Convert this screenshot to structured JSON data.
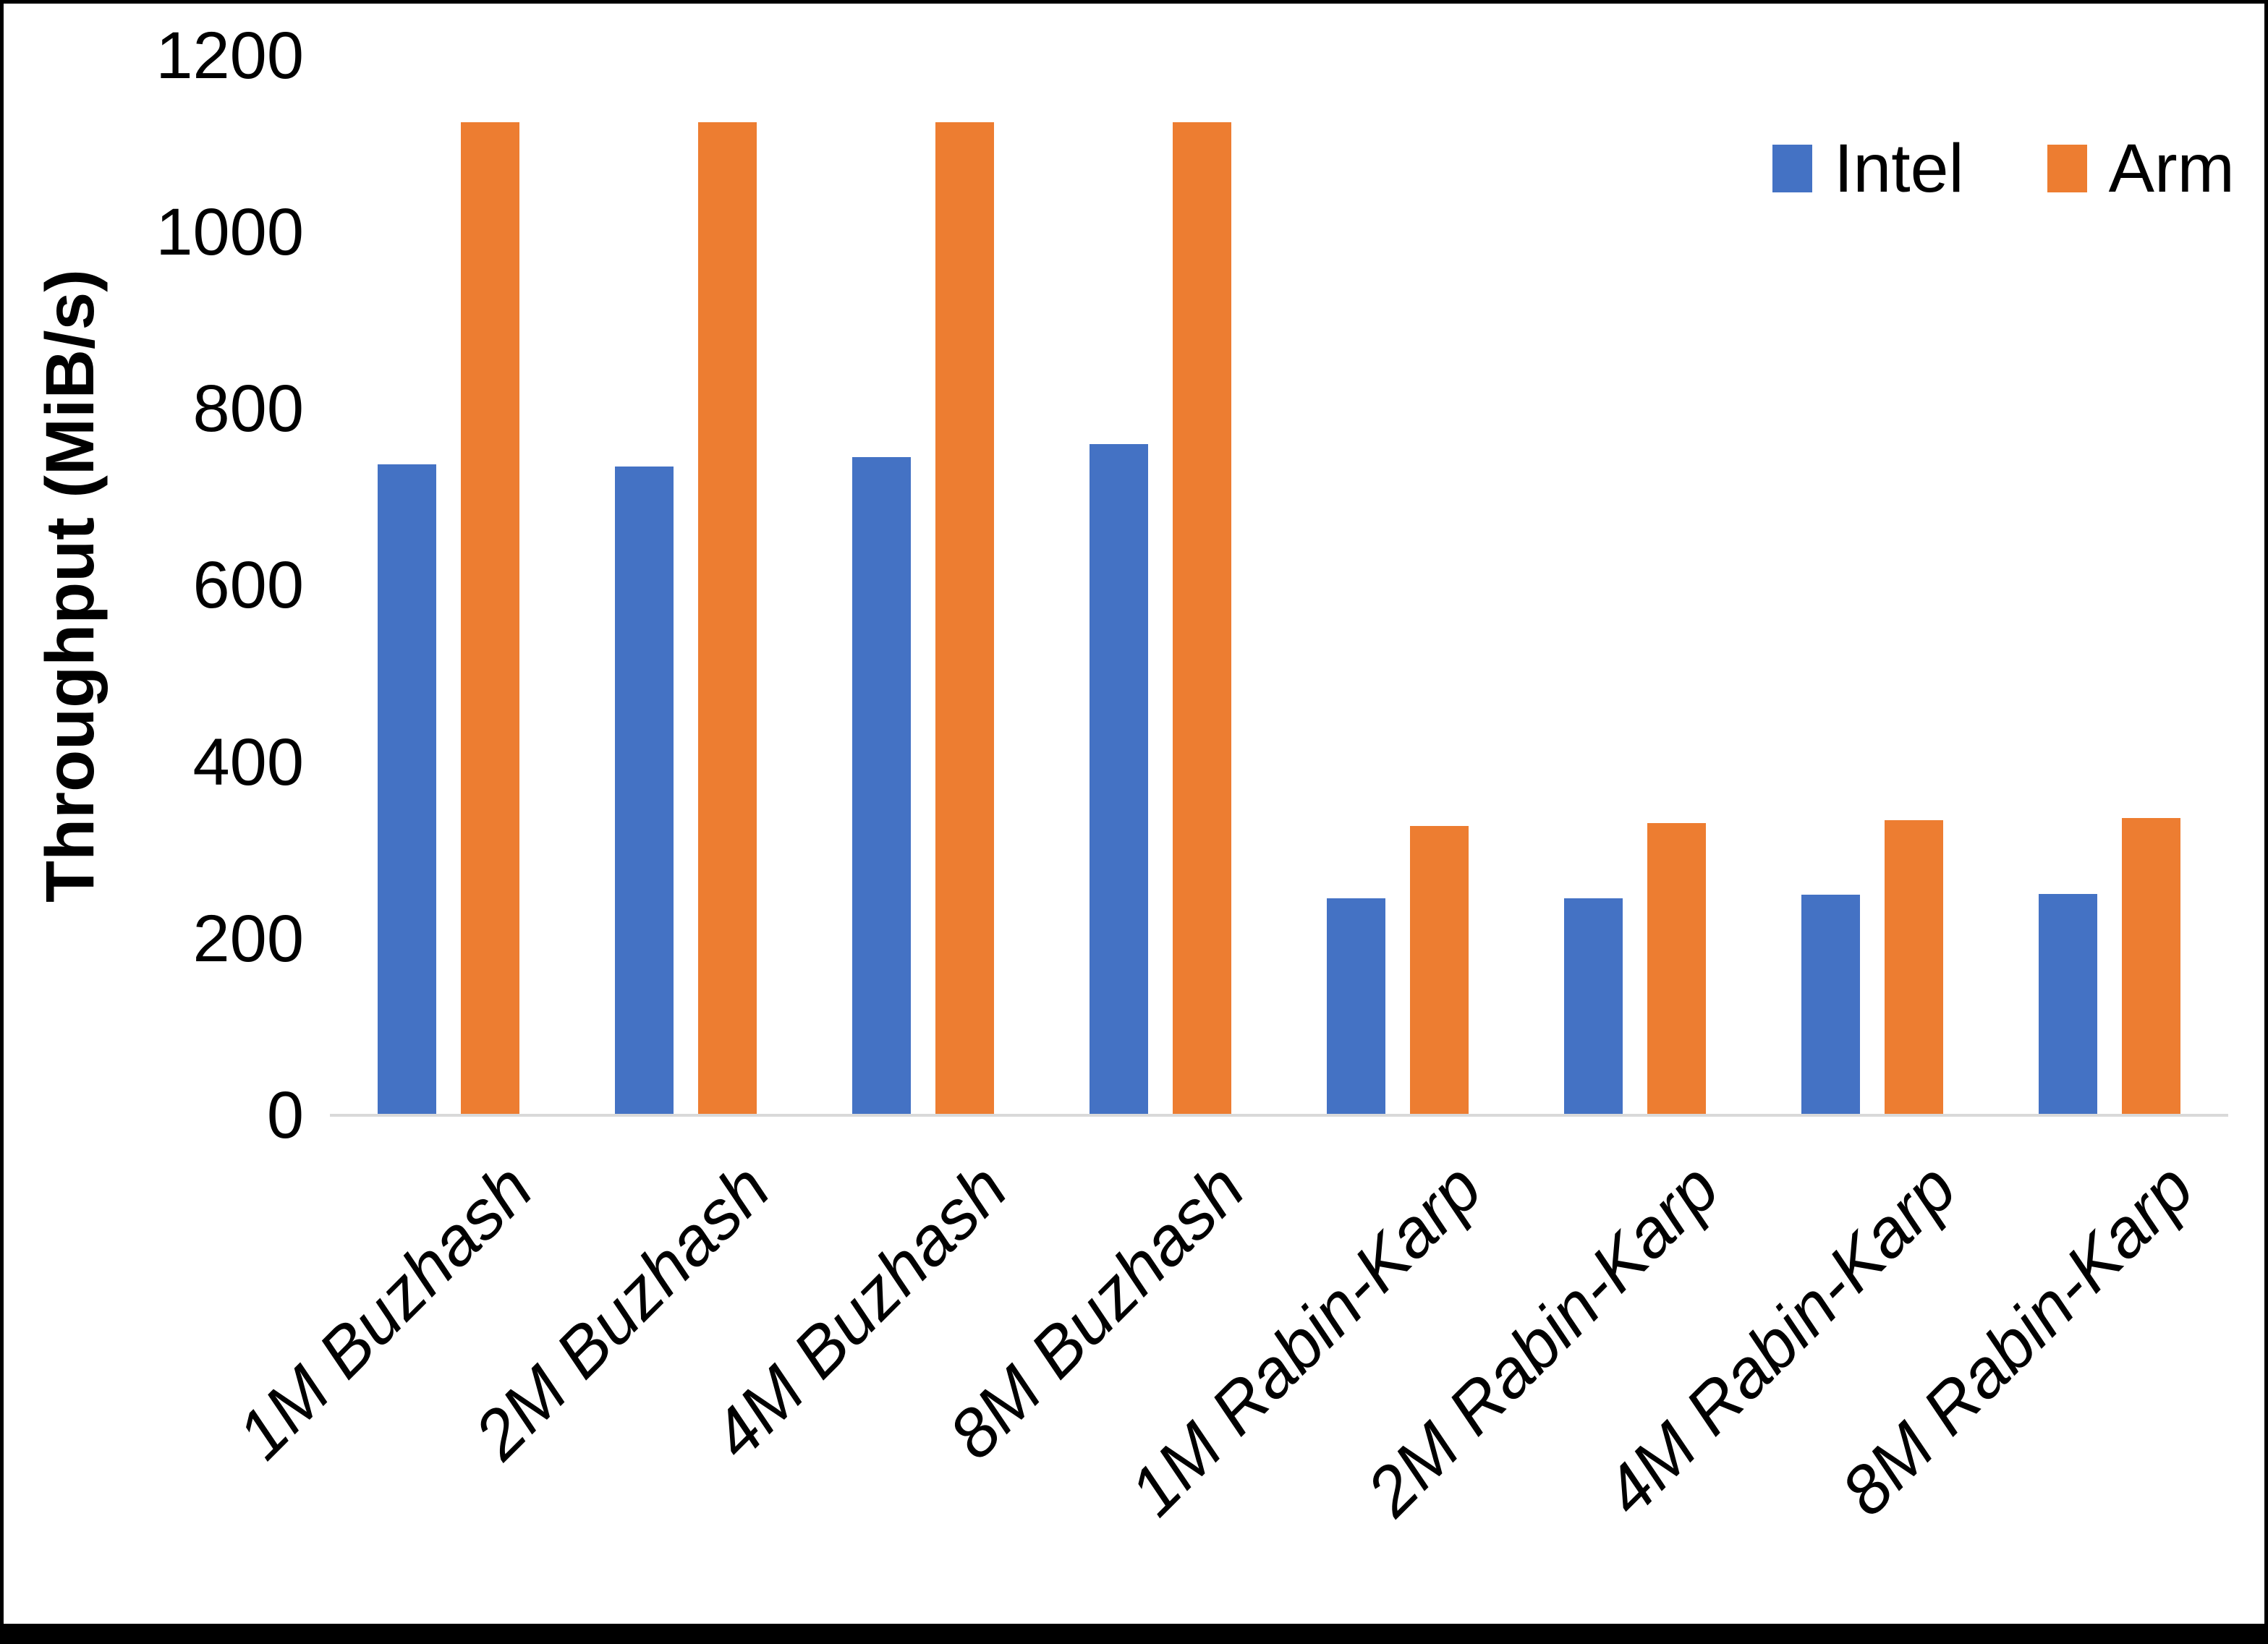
{
  "chart_data": {
    "type": "bar",
    "title": "",
    "xlabel": "",
    "ylabel": "Throughput (MiB/s)",
    "ylim": [
      0,
      1200
    ],
    "yticks": [
      0,
      200,
      400,
      600,
      800,
      1000,
      1200
    ],
    "grid": false,
    "axis_line_color": "#D9D9D9",
    "background_color": "#FFFFFF",
    "text_color": "#000000",
    "legend_position": "top-right",
    "categories": [
      "1M Buzhash",
      "2M Buzhash",
      "4M Buzhash",
      "8M Buzhash",
      "1M Rabin-Karp",
      "2M Rabin-Karp",
      "4M Rabin-Karp",
      "8M Rabin-Karp"
    ],
    "series": [
      {
        "name": "Intel",
        "color": "#4472C4",
        "values": [
          737,
          735,
          745,
          760,
          246,
          246,
          250,
          251
        ]
      },
      {
        "name": "Arm",
        "color": "#ED7D31",
        "values": [
          1125,
          1125,
          1125,
          1125,
          328,
          331,
          334,
          337
        ]
      }
    ]
  }
}
